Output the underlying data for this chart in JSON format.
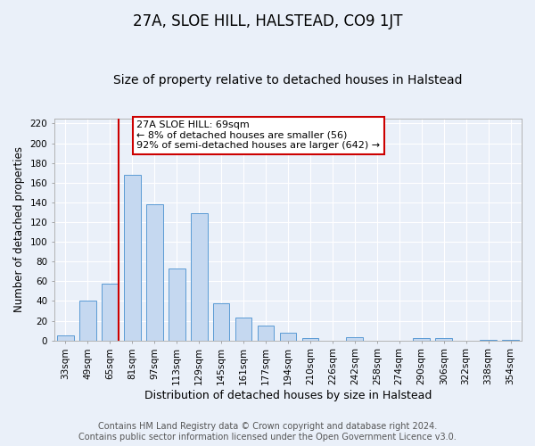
{
  "title": "27A, SLOE HILL, HALSTEAD, CO9 1JT",
  "subtitle": "Size of property relative to detached houses in Halstead",
  "xlabel": "Distribution of detached houses by size in Halstead",
  "ylabel": "Number of detached properties",
  "bar_categories": [
    "33sqm",
    "49sqm",
    "65sqm",
    "81sqm",
    "97sqm",
    "113sqm",
    "129sqm",
    "145sqm",
    "161sqm",
    "177sqm",
    "194sqm",
    "210sqm",
    "226sqm",
    "242sqm",
    "258sqm",
    "274sqm",
    "290sqm",
    "306sqm",
    "322sqm",
    "338sqm",
    "354sqm"
  ],
  "bar_values": [
    5,
    40,
    58,
    168,
    138,
    73,
    129,
    38,
    23,
    15,
    8,
    2,
    0,
    3,
    0,
    0,
    2,
    2,
    0,
    1,
    1
  ],
  "bar_color": "#c5d8f0",
  "bar_edgecolor": "#5b9bd5",
  "vline_x_index": 2,
  "vline_color": "#cc0000",
  "ylim": [
    0,
    225
  ],
  "yticks": [
    0,
    20,
    40,
    60,
    80,
    100,
    120,
    140,
    160,
    180,
    200,
    220
  ],
  "annotation_text": "27A SLOE HILL: 69sqm\n← 8% of detached houses are smaller (56)\n92% of semi-detached houses are larger (642) →",
  "annotation_box_edgecolor": "#cc0000",
  "footer_line1": "Contains HM Land Registry data © Crown copyright and database right 2024.",
  "footer_line2": "Contains public sector information licensed under the Open Government Licence v3.0.",
  "bg_color": "#eaf0f9",
  "plot_bg_color": "#eaf0f9",
  "grid_color": "#ffffff",
  "bar_width": 0.75,
  "title_fontsize": 12,
  "subtitle_fontsize": 10,
  "xlabel_fontsize": 9,
  "ylabel_fontsize": 8.5,
  "tick_fontsize": 7.5,
  "annotation_fontsize": 8,
  "footer_fontsize": 7
}
